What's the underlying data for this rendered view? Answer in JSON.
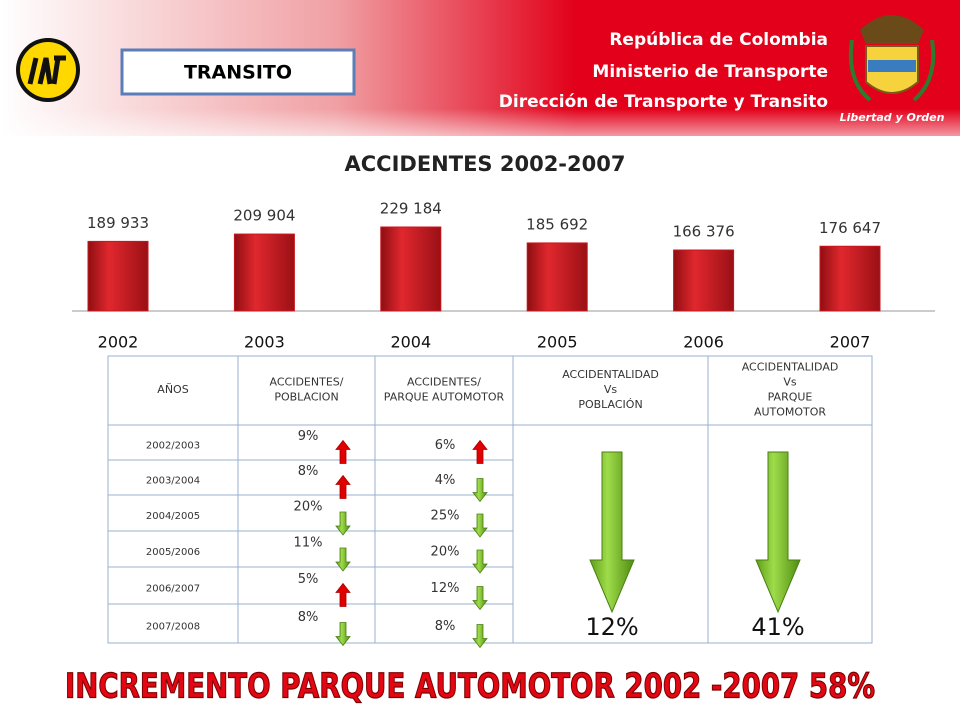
{
  "header": {
    "tag": "TRANSITO",
    "org_lines": [
      "República de Colombia",
      "Ministerio de Transporte",
      "Dirección de Transporte y Transito"
    ],
    "motto": "Libertad y Orden"
  },
  "chart_data": {
    "type": "bar",
    "title": "ACCIDENTES 2002-2007",
    "categories": [
      "2002",
      "2003",
      "2004",
      "2005",
      "2006",
      "2007"
    ],
    "values": [
      189933,
      209904,
      229184,
      185692,
      166376,
      176647
    ],
    "value_labels": [
      "189 933",
      "209 904",
      "229 184",
      "185 692",
      "166 376",
      "176 647"
    ],
    "color": "#c8161d"
  },
  "table": {
    "columns": [
      [
        "AÑOS"
      ],
      [
        "ACCIDENTES/",
        "POBLACION"
      ],
      [
        "ACCIDENTES/",
        "PARQUE AUTOMOTOR"
      ],
      [
        "ACCIDENTALIDAD",
        "Vs",
        "POBLACIÓN"
      ],
      [
        "ACCIDENTALIDAD",
        "Vs",
        "PARQUE",
        "AUTOMOTOR"
      ]
    ],
    "rows": [
      {
        "period": "2002/2003",
        "population": "9%",
        "population_trend": "up",
        "fleet": "6%",
        "fleet_trend": "up"
      },
      {
        "period": "2003/2004",
        "population": "8%",
        "population_trend": "up",
        "fleet": "4%",
        "fleet_trend": "down"
      },
      {
        "period": "2004/2005",
        "population": "20%",
        "population_trend": "down",
        "fleet": "25%",
        "fleet_trend": "down"
      },
      {
        "period": "2005/2006",
        "population": "11%",
        "population_trend": "down",
        "fleet": "20%",
        "fleet_trend": "down"
      },
      {
        "period": "2006/2007",
        "population": "5%",
        "population_trend": "up",
        "fleet": "12%",
        "fleet_trend": "down"
      },
      {
        "period": "2007/2008",
        "population": "8%",
        "population_trend": "down",
        "fleet": "8%",
        "fleet_trend": "down"
      }
    ],
    "summary": [
      "12%",
      "41%"
    ],
    "summary_trend": "down"
  },
  "footer": {
    "banner": "INCREMENTO PARQUE AUTOMOTOR 2002 -2007 58%"
  }
}
